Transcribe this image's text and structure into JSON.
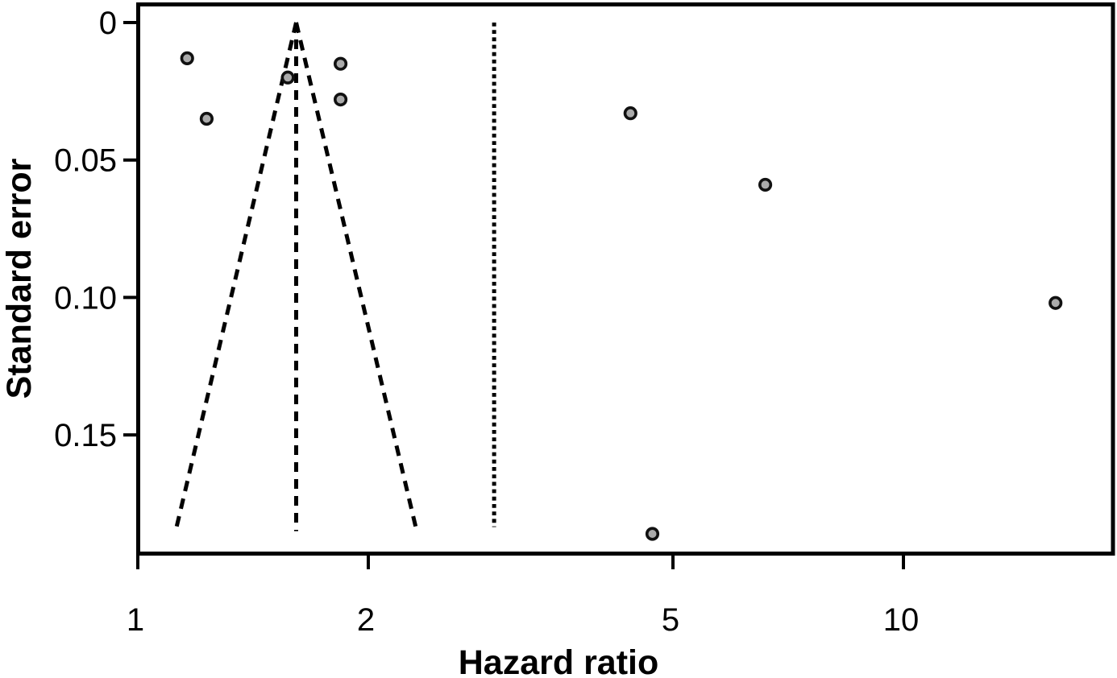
{
  "figure": {
    "background": "#ffffff",
    "frame_color": "#000000",
    "line_color": "#000000",
    "marker_fill": "#ababab",
    "marker_stroke": "#111111"
  },
  "chart_data": {
    "type": "scatter",
    "title": "",
    "xlabel": "Hazard ratio",
    "ylabel": "Standard error",
    "x_scale": "log10",
    "y_inverted": true,
    "grid": false,
    "legend": null,
    "xlim": [
      1,
      18.9
    ],
    "ylim": [
      0,
      0.193
    ],
    "x_ticks": [
      1,
      2,
      5,
      10
    ],
    "x_tick_labels": [
      "1",
      "2",
      "5",
      "10"
    ],
    "y_ticks": [
      0,
      0.05,
      0.1,
      0.15
    ],
    "y_tick_labels": [
      "0",
      "0.05",
      "0.10",
      "0.15"
    ],
    "points": [
      {
        "hr": 1.16,
        "se": 0.013
      },
      {
        "hr": 1.23,
        "se": 0.035
      },
      {
        "hr": 1.57,
        "se": 0.02
      },
      {
        "hr": 1.84,
        "se": 0.015
      },
      {
        "hr": 1.84,
        "se": 0.028
      },
      {
        "hr": 4.4,
        "se": 0.033
      },
      {
        "hr": 6.6,
        "se": 0.059
      },
      {
        "hr": 15.8,
        "se": 0.102
      },
      {
        "hr": 4.7,
        "se": 0.186
      }
    ],
    "funnel": {
      "center_hr": 1.61,
      "ci_z": 1.96,
      "max_se": 0.185,
      "line_style": "dashed"
    },
    "center_line": {
      "hr": 1.61,
      "max_se": 0.185,
      "line_style": "dashed"
    },
    "reference_line": {
      "hr": 2.92,
      "max_se": 0.1835,
      "line_style": "dotted"
    }
  }
}
